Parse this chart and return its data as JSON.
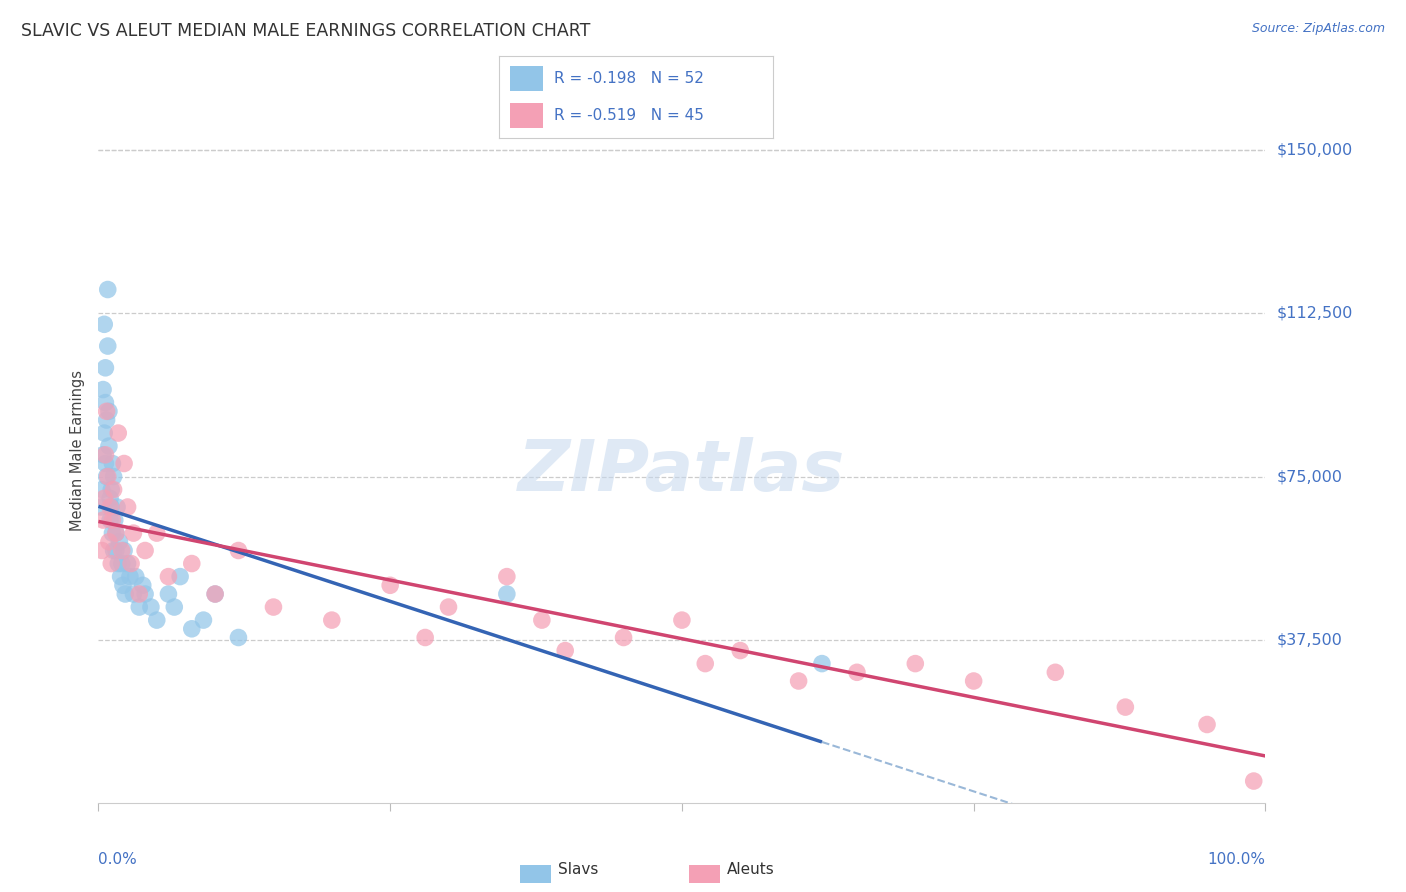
{
  "title": "SLAVIC VS ALEUT MEDIAN MALE EARNINGS CORRELATION CHART",
  "source": "Source: ZipAtlas.com",
  "ylabel": "Median Male Earnings",
  "ytick_labels": [
    "$37,500",
    "$75,000",
    "$112,500",
    "$150,000"
  ],
  "ytick_values": [
    37500,
    75000,
    112500,
    150000
  ],
  "ylim": [
    0,
    162000
  ],
  "xlim": [
    0.0,
    1.0
  ],
  "legend_slavs_text": "R = -0.198   N = 52",
  "legend_aleuts_text": "R = -0.519   N = 45",
  "slavs_color": "#92C5E8",
  "aleuts_color": "#F4A0B5",
  "slavs_line_color": "#3464B4",
  "aleuts_line_color": "#D04570",
  "slavs_dash_color": "#9AB8D8",
  "blue_label_color": "#4472C4",
  "background_color": "#FFFFFF",
  "slavs_x": [
    0.002,
    0.003,
    0.004,
    0.004,
    0.005,
    0.005,
    0.006,
    0.006,
    0.006,
    0.007,
    0.007,
    0.008,
    0.008,
    0.009,
    0.009,
    0.01,
    0.01,
    0.011,
    0.011,
    0.012,
    0.012,
    0.013,
    0.013,
    0.014,
    0.015,
    0.015,
    0.016,
    0.017,
    0.018,
    0.019,
    0.02,
    0.021,
    0.022,
    0.023,
    0.025,
    0.027,
    0.03,
    0.032,
    0.035,
    0.038,
    0.04,
    0.045,
    0.05,
    0.06,
    0.065,
    0.07,
    0.08,
    0.09,
    0.1,
    0.12,
    0.35,
    0.62
  ],
  "slavs_y": [
    68000,
    72000,
    80000,
    95000,
    85000,
    110000,
    100000,
    78000,
    92000,
    88000,
    75000,
    118000,
    105000,
    90000,
    82000,
    70000,
    65000,
    72000,
    68000,
    78000,
    62000,
    75000,
    58000,
    65000,
    62000,
    58000,
    68000,
    55000,
    60000,
    52000,
    55000,
    50000,
    58000,
    48000,
    55000,
    52000,
    48000,
    52000,
    45000,
    50000,
    48000,
    45000,
    42000,
    48000,
    45000,
    52000,
    40000,
    42000,
    48000,
    38000,
    48000,
    32000
  ],
  "aleuts_x": [
    0.003,
    0.004,
    0.005,
    0.006,
    0.007,
    0.008,
    0.009,
    0.01,
    0.011,
    0.012,
    0.013,
    0.015,
    0.017,
    0.02,
    0.022,
    0.025,
    0.028,
    0.03,
    0.035,
    0.04,
    0.05,
    0.06,
    0.08,
    0.1,
    0.12,
    0.15,
    0.2,
    0.25,
    0.28,
    0.3,
    0.35,
    0.38,
    0.4,
    0.45,
    0.5,
    0.52,
    0.55,
    0.6,
    0.65,
    0.7,
    0.75,
    0.82,
    0.88,
    0.95,
    0.99
  ],
  "aleuts_y": [
    58000,
    65000,
    70000,
    80000,
    90000,
    75000,
    60000,
    68000,
    55000,
    65000,
    72000,
    62000,
    85000,
    58000,
    78000,
    68000,
    55000,
    62000,
    48000,
    58000,
    62000,
    52000,
    55000,
    48000,
    58000,
    45000,
    42000,
    50000,
    38000,
    45000,
    52000,
    42000,
    35000,
    38000,
    42000,
    32000,
    35000,
    28000,
    30000,
    32000,
    28000,
    30000,
    22000,
    18000,
    5000
  ]
}
